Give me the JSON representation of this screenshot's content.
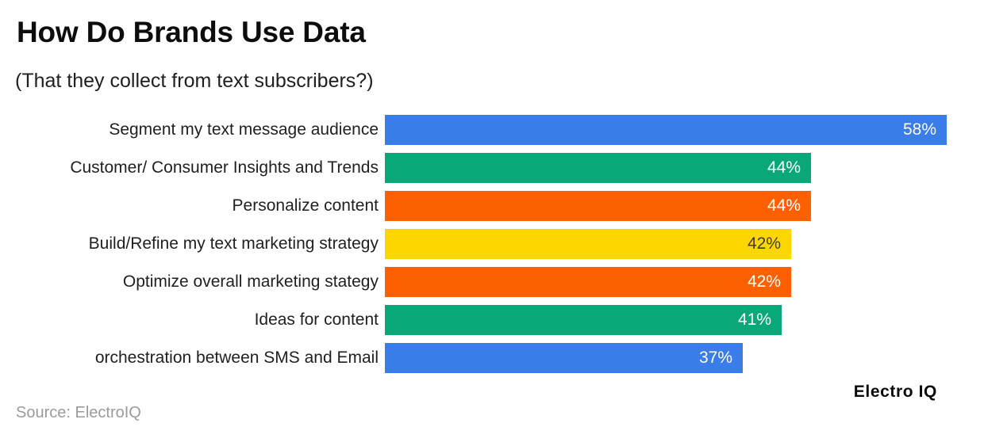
{
  "title": "How Do Brands Use Data",
  "subtitle": "(That they collect from text subscribers?)",
  "brand": "Electro IQ",
  "source": "Source: ElectroIQ",
  "colors": {
    "blue": "#3A7CE8",
    "green": "#0AA778",
    "orange": "#FD6000",
    "yellow": "#FDD600",
    "label_text": "#1f1f1f",
    "value_text_light": "#ffffff",
    "value_text_dark": "#3d3d3d",
    "source_text": "#9b9b9b"
  },
  "chart_data": {
    "type": "bar",
    "orientation": "horizontal",
    "title": "How Do Brands Use Data",
    "subtitle": "(That they collect from text subscribers?)",
    "unit": "%",
    "xlim": [
      0,
      60
    ],
    "grid": false,
    "legend": false,
    "categories": [
      "Segment my text message audience",
      "Customer/ Consumer Insights and Trends",
      "Personalize content",
      "Build/Refine my text marketing strategy",
      "Optimize overall marketing stategy",
      "Ideas for content",
      "orchestration between SMS and Email"
    ],
    "values": [
      58,
      44,
      44,
      42,
      42,
      41,
      37
    ],
    "value_labels": [
      "58%",
      "44%",
      "44%",
      "42%",
      "42%",
      "41%",
      "37%"
    ],
    "bar_colors": [
      "blue",
      "green",
      "orange",
      "yellow",
      "orange",
      "green",
      "blue"
    ]
  }
}
